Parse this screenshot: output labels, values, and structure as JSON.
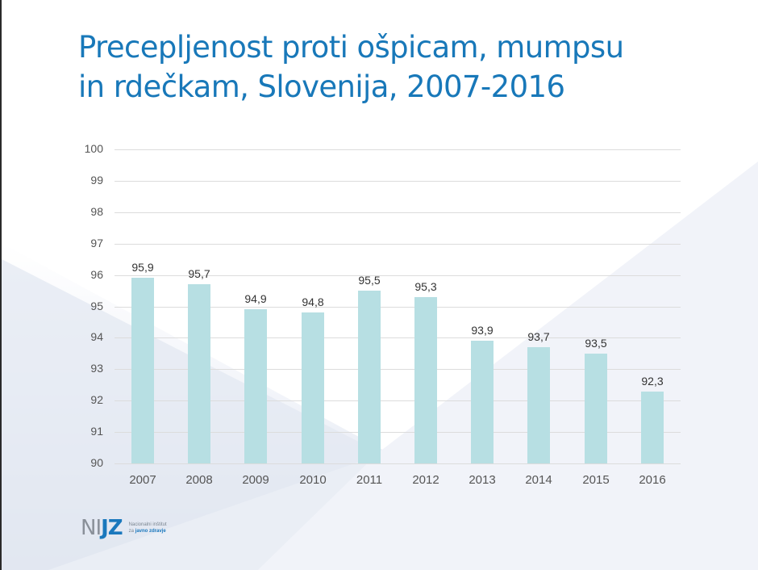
{
  "title": {
    "line1": "Precepljenost proti ošpicam, mumpsu",
    "line2": "in rdečkam, Slovenija, 2007-2016"
  },
  "colors": {
    "title": "#1878b9",
    "bar": "#b7dfe3",
    "grid": "#dcdcdc",
    "logo_blue": "#1a78bd",
    "logo_gray": "#8a9099"
  },
  "logo": {
    "mark_part1": "NI",
    "mark_part2": "JZ",
    "line1": "Nacionalni inštitut",
    "line2_prefix": "za ",
    "line2_bold": "javno zdravje"
  },
  "chart_data": {
    "type": "bar",
    "title": "Precepljenost proti ošpicam, mumpsu in rdečkam, Slovenija, 2007-2016",
    "xlabel": "",
    "ylabel": "",
    "categories": [
      "2007",
      "2008",
      "2009",
      "2010",
      "2011",
      "2012",
      "2013",
      "2014",
      "2015",
      "2016"
    ],
    "values": [
      95.9,
      95.7,
      94.9,
      94.8,
      95.5,
      95.3,
      93.9,
      93.7,
      93.5,
      92.3
    ],
    "value_labels": [
      "95,9",
      "95,7",
      "94,9",
      "94,8",
      "95,5",
      "95,3",
      "93,9",
      "93,7",
      "93,5",
      "92,3"
    ],
    "ylim": [
      90,
      100
    ],
    "yticks": [
      "100",
      "99",
      "98",
      "97",
      "96",
      "95",
      "94",
      "93",
      "92",
      "91",
      "90"
    ],
    "grid": true,
    "legend": null
  }
}
